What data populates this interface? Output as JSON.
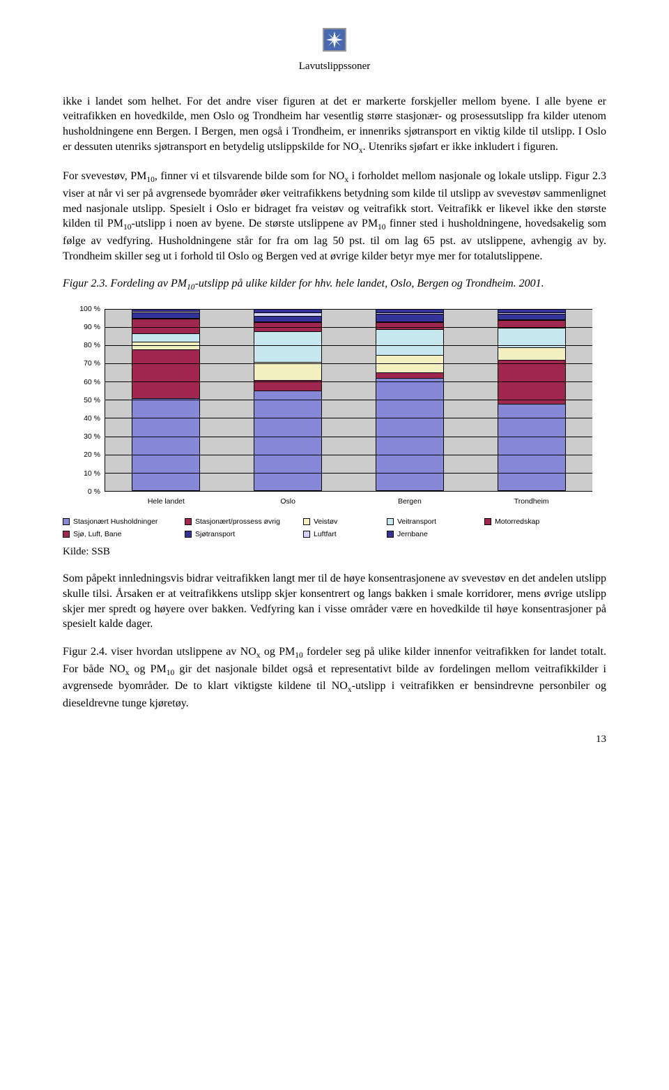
{
  "header": {
    "title": "Lavutslippssoner"
  },
  "para1": "ikke i landet som helhet. For det andre viser figuren at det er markerte forskjeller mellom byene. I alle byene er veitrafikken en hovedkilde, men Oslo og Trondheim har vesentlig større stasjonær- og prosessutslipp fra kilder utenom husholdningene enn Bergen. I Bergen, men også i Trondheim, er innenriks sjøtransport en viktig kilde til utslipp. I Oslo er dessuten utenriks sjøtransport en betydelig utslippskilde for NOx. Utenriks sjøfart er ikke inkludert i figuren.",
  "para2": "For svevestøv, PM10, finner vi et tilsvarende bilde som for NOx i forholdet mellom nasjonale og lokale utslipp. Figur 2.3 viser at når vi ser på avgrensede byområder øker veitrafikkens betydning som kilde til utslipp av svevestøv sammenlignet med nasjonale utslipp. Spesielt i Oslo er bidraget fra veistøv og veitrafikk stort. Veitrafikk er likevel ikke den største kilden til PM10-utslipp i noen av byene. De største utslippene av PM10 finner sted i husholdningene, hovedsakelig som følge av vedfyring. Husholdningene står for fra om lag 50 pst. til om lag 65 pst. av utslippene, avhengig av by. Trondheim skiller seg ut i forhold til Oslo og Bergen ved at øvrige kilder betyr mye mer for totalutslippene.",
  "caption": "Figur 2.3. Fordeling av PM10-utslipp på ulike kilder for hhv. hele landet, Oslo, Bergen og Trondheim. 2001.",
  "chart": {
    "type": "stacked-bar-100",
    "background_color": "#cccccc",
    "grid_color": "#000000",
    "ylim": [
      0,
      100
    ],
    "ytick_step": 10,
    "ytick_suffix": " %",
    "categories": [
      "Hele landet",
      "Oslo",
      "Bergen",
      "Trondheim"
    ],
    "series": [
      {
        "key": "jernbane",
        "label": "Jernbane",
        "color": "#333399"
      },
      {
        "key": "luftfart",
        "label": "Luftfart",
        "color": "#d4d4ff"
      },
      {
        "key": "sjotrans",
        "label": "Sjøtransport",
        "color": "#333399"
      },
      {
        "key": "sjoluft",
        "label": "Sjø, Luft, Bane",
        "color": "#a02850"
      },
      {
        "key": "motor",
        "label": "Motorredskap",
        "color": "#a02850"
      },
      {
        "key": "veitrans",
        "label": "Veitransport",
        "color": "#c8e8f0"
      },
      {
        "key": "veistov",
        "label": "Veistøv",
        "color": "#f5f0c0"
      },
      {
        "key": "stasjovrig",
        "label": "Stasjonært/prossess øvrig",
        "color": "#a02850"
      },
      {
        "key": "stasjhus",
        "label": "Stasjonært Husholdninger",
        "color": "#8888d8"
      }
    ],
    "data": [
      {
        "stasjhus": 51,
        "stasjovrig": 27,
        "veistov": 4,
        "veitrans": 5,
        "motor": 8,
        "sjoluft": 0.5,
        "sjotrans": 3,
        "luftfart": 0.5,
        "jernbane": 1
      },
      {
        "stasjhus": 55,
        "stasjovrig": 6,
        "veistov": 10,
        "veitrans": 17,
        "motor": 5,
        "sjoluft": 0.5,
        "sjotrans": 3,
        "luftfart": 2,
        "jernbane": 1.5
      },
      {
        "stasjhus": 62,
        "stasjovrig": 3,
        "veistov": 10,
        "veitrans": 14,
        "motor": 4,
        "sjoluft": 0.5,
        "sjotrans": 4,
        "luftfart": 1,
        "jernbane": 1.5
      },
      {
        "stasjhus": 48,
        "stasjovrig": 24,
        "veistov": 7,
        "veitrans": 11,
        "motor": 4,
        "sjoluft": 0.5,
        "sjotrans": 3,
        "luftfart": 1,
        "jernbane": 1.5
      }
    ],
    "legend_order_row1": [
      "stasjhus",
      "stasjovrig",
      "veistov",
      "veitrans",
      "motor"
    ],
    "legend_order_row2": [
      "sjoluft",
      "sjotrans",
      "luftfart",
      "jernbane"
    ]
  },
  "kilde": "Kilde: SSB",
  "para3": "Som påpekt innledningsvis bidrar veitrafikken langt mer til de høye konsentrasjonene av svevestøv en det andelen utslipp skulle tilsi. Årsaken er at veitrafikkens utslipp skjer konsentrert og langs bakken i smale korridorer, mens øvrige utslipp skjer mer spredt og høyere over bakken. Vedfyring kan i visse områder være en hovedkilde til høye konsentrasjoner på spesielt kalde dager.",
  "para4": "Figur 2.4. viser hvordan utslippene av NOx og PM10 fordeler seg på ulike kilder innenfor veitrafikken for landet totalt. For både NOx og PM10 gir det nasjonale bildet også et representativt bilde av fordelingen mellom veitrafikkilder i avgrensede byområder. De to klart viktigste kildene til NOx-utslipp i veitrafikken er bensindrevne personbiler og dieseldrevne tunge kjøretøy.",
  "pagenum": "13"
}
